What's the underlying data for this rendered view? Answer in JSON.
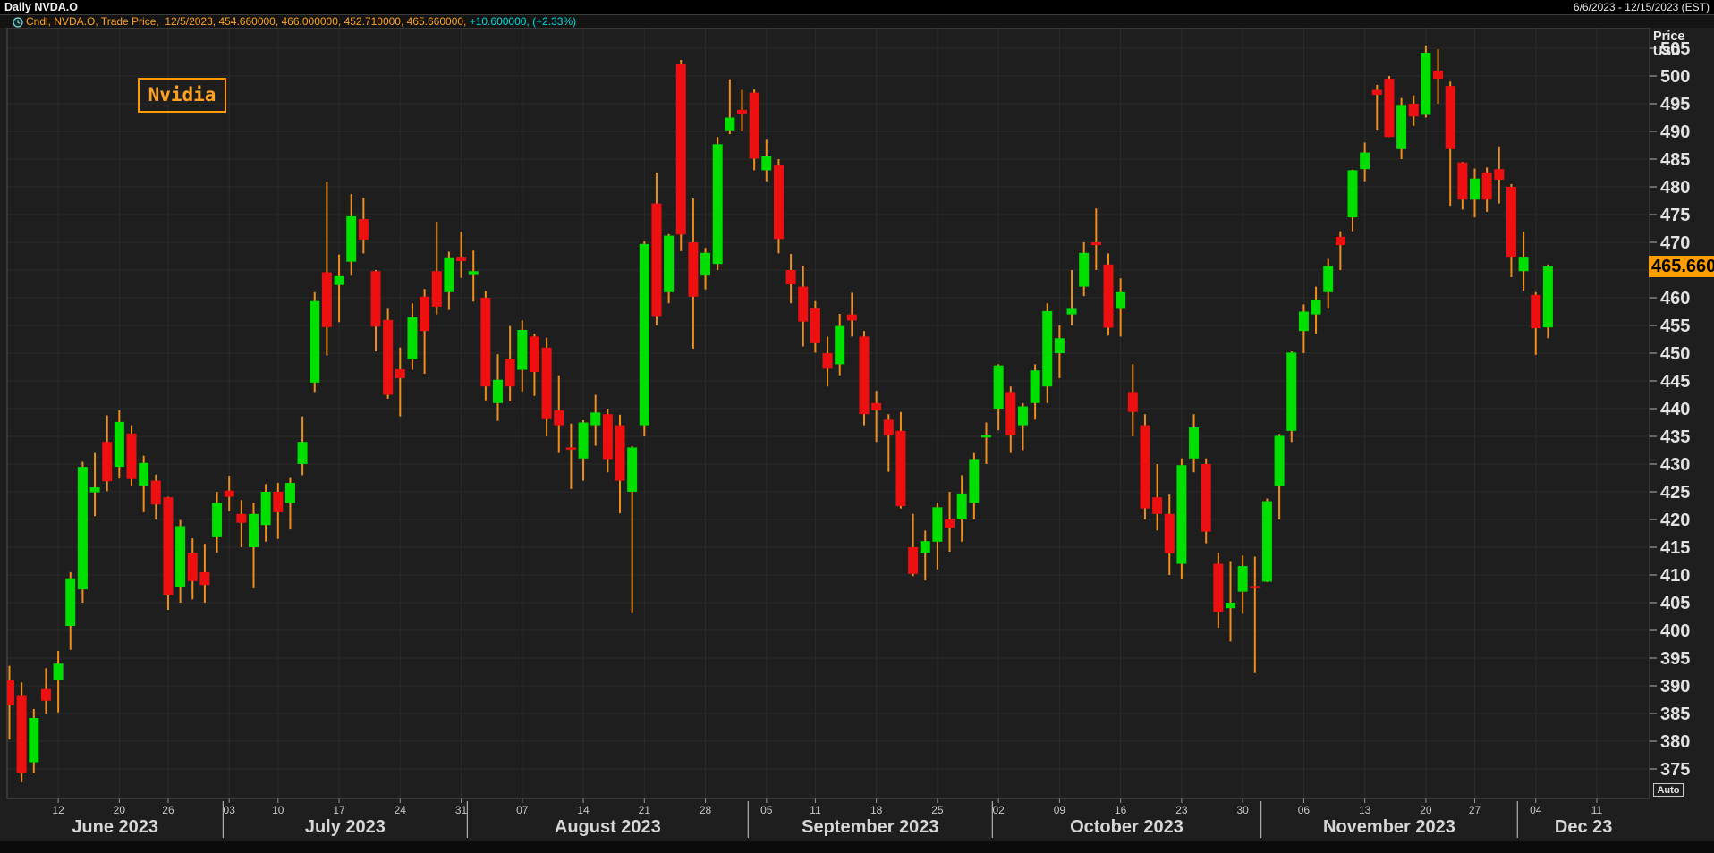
{
  "title_bar": {
    "title": "Daily NVDA.O",
    "date_range": "6/6/2023 - 12/15/2023 (EST)"
  },
  "legend": {
    "icon": "clock-icon",
    "main_text": "Cndl, NVDA.O, Trade Price,  12/5/2023, 454.660000, 466.000000, 452.710000, 465.660000, ",
    "change_text": "+10.600000, (+2.33%)"
  },
  "annotation": {
    "label": "Nvidia"
  },
  "price_axis": {
    "title_line1": "Price",
    "title_line2": "USD",
    "ticks": [
      505,
      500,
      495,
      490,
      485,
      480,
      475,
      470,
      465,
      460,
      455,
      450,
      445,
      440,
      435,
      430,
      425,
      420,
      415,
      410,
      405,
      400,
      395,
      390,
      385,
      380,
      375
    ],
    "hidden_tick": 465,
    "last_price_label": "465.660",
    "last_price_value": 465.66,
    "auto_button": "Auto"
  },
  "date_axis": {
    "week_ticks": [
      {
        "label": "12",
        "index": 4
      },
      {
        "label": "20",
        "index": 9
      },
      {
        "label": "26",
        "index": 13
      },
      {
        "label": "03",
        "index": 18
      },
      {
        "label": "10",
        "index": 22
      },
      {
        "label": "17",
        "index": 27
      },
      {
        "label": "24",
        "index": 32
      },
      {
        "label": "31",
        "index": 37
      },
      {
        "label": "07",
        "index": 42
      },
      {
        "label": "14",
        "index": 47
      },
      {
        "label": "21",
        "index": 52
      },
      {
        "label": "28",
        "index": 57
      },
      {
        "label": "05",
        "index": 62
      },
      {
        "label": "11",
        "index": 66
      },
      {
        "label": "18",
        "index": 71
      },
      {
        "label": "25",
        "index": 76
      },
      {
        "label": "02",
        "index": 81
      },
      {
        "label": "09",
        "index": 86
      },
      {
        "label": "16",
        "index": 91
      },
      {
        "label": "23",
        "index": 96
      },
      {
        "label": "30",
        "index": 101
      },
      {
        "label": "06",
        "index": 106
      },
      {
        "label": "13",
        "index": 111
      },
      {
        "label": "20",
        "index": 116
      },
      {
        "label": "27",
        "index": 120
      },
      {
        "label": "04",
        "index": 125
      },
      {
        "label": "11",
        "index": 130
      }
    ],
    "months": [
      {
        "label": "June 2023",
        "start_index": 0
      },
      {
        "label": "July 2023",
        "start_index": 18
      },
      {
        "label": "August 2023",
        "start_index": 38
      },
      {
        "label": "September 2023",
        "start_index": 61
      },
      {
        "label": "October 2023",
        "start_index": 81
      },
      {
        "label": "November 2023",
        "start_index": 103
      },
      {
        "label": "Dec 23",
        "start_index": 124
      }
    ]
  },
  "colors": {
    "up": "#00e000",
    "down": "#ee1010",
    "wick": "#ef8e1a",
    "badge": "#ff9d00",
    "legend_orange": "#ffa21f",
    "legend_cyan": "#00dcdc",
    "grid": "#2b2b2b",
    "plot_border": "#4f4f4f",
    "axis_text": "#e2e2e2",
    "day_text": "#c8c8c8",
    "month_text": "#d6d6d6",
    "separator": "#b0b0b0"
  },
  "chart_data": {
    "type": "candlestick",
    "symbol": "NVDA.O",
    "interval": "Daily",
    "title": "Nvidia",
    "ylabel": "Price USD",
    "x_range": [
      "6/6/2023",
      "12/15/2023"
    ],
    "ylim": [
      370,
      509
    ],
    "grid": true,
    "series": [
      {
        "date": "6/6",
        "o": 391.0,
        "h": 393.6,
        "l": 380.3,
        "c": 386.5
      },
      {
        "date": "6/7",
        "o": 388.3,
        "h": 390.6,
        "l": 372.6,
        "c": 374.2
      },
      {
        "date": "6/8",
        "o": 376.2,
        "h": 385.8,
        "l": 374.2,
        "c": 384.2
      },
      {
        "date": "6/9",
        "o": 389.4,
        "h": 393.2,
        "l": 385.0,
        "c": 387.3
      },
      {
        "date": "6/12",
        "o": 391.1,
        "h": 396.3,
        "l": 385.2,
        "c": 394.0
      },
      {
        "date": "6/13",
        "o": 400.8,
        "h": 410.5,
        "l": 396.5,
        "c": 409.4
      },
      {
        "date": "6/14",
        "o": 407.4,
        "h": 430.4,
        "l": 405.0,
        "c": 429.5
      },
      {
        "date": "6/15",
        "o": 424.9,
        "h": 432.0,
        "l": 420.6,
        "c": 425.8
      },
      {
        "date": "6/16",
        "o": 434.0,
        "h": 438.8,
        "l": 425.1,
        "c": 426.9
      },
      {
        "date": "6/20",
        "o": 429.5,
        "h": 439.7,
        "l": 427.4,
        "c": 437.6
      },
      {
        "date": "6/21",
        "o": 435.5,
        "h": 437.0,
        "l": 426.0,
        "c": 427.3
      },
      {
        "date": "6/22",
        "o": 426.1,
        "h": 431.5,
        "l": 421.3,
        "c": 430.2
      },
      {
        "date": "6/23",
        "o": 427.0,
        "h": 428.1,
        "l": 420.0,
        "c": 422.7
      },
      {
        "date": "6/26",
        "o": 424.0,
        "h": 424.1,
        "l": 403.7,
        "c": 406.3
      },
      {
        "date": "6/27",
        "o": 407.9,
        "h": 419.9,
        "l": 405.0,
        "c": 418.8
      },
      {
        "date": "6/28",
        "o": 414.0,
        "h": 416.6,
        "l": 405.6,
        "c": 408.9
      },
      {
        "date": "6/29",
        "o": 410.5,
        "h": 415.6,
        "l": 405.0,
        "c": 408.2
      },
      {
        "date": "6/30",
        "o": 416.8,
        "h": 425.0,
        "l": 414.0,
        "c": 423.0
      },
      {
        "date": "7/3",
        "o": 425.2,
        "h": 427.9,
        "l": 421.5,
        "c": 424.1
      },
      {
        "date": "7/5",
        "o": 421.0,
        "h": 423.5,
        "l": 415.0,
        "c": 419.4
      },
      {
        "date": "7/6",
        "o": 415.0,
        "h": 423.0,
        "l": 407.6,
        "c": 421.0
      },
      {
        "date": "7/7",
        "o": 419.0,
        "h": 426.4,
        "l": 416.0,
        "c": 425.0
      },
      {
        "date": "7/10",
        "o": 425.0,
        "h": 426.6,
        "l": 416.5,
        "c": 421.3
      },
      {
        "date": "7/11",
        "o": 423.0,
        "h": 427.5,
        "l": 418.2,
        "c": 426.6
      },
      {
        "date": "7/12",
        "o": 430.0,
        "h": 438.6,
        "l": 428.0,
        "c": 434.0
      },
      {
        "date": "7/13",
        "o": 444.7,
        "h": 461.0,
        "l": 443.0,
        "c": 459.4
      },
      {
        "date": "7/14",
        "o": 464.6,
        "h": 480.9,
        "l": 449.6,
        "c": 454.7
      },
      {
        "date": "7/17",
        "o": 462.3,
        "h": 467.8,
        "l": 455.6,
        "c": 463.9
      },
      {
        "date": "7/18",
        "o": 466.5,
        "h": 478.7,
        "l": 464.0,
        "c": 474.7
      },
      {
        "date": "7/19",
        "o": 474.2,
        "h": 478.0,
        "l": 468.0,
        "c": 470.5
      },
      {
        "date": "7/20",
        "o": 464.8,
        "h": 465.0,
        "l": 450.3,
        "c": 454.8
      },
      {
        "date": "7/21",
        "o": 456.0,
        "h": 458.0,
        "l": 441.8,
        "c": 442.5
      },
      {
        "date": "7/24",
        "o": 447.1,
        "h": 451.0,
        "l": 438.6,
        "c": 445.5
      },
      {
        "date": "7/25",
        "o": 448.9,
        "h": 459.0,
        "l": 447.0,
        "c": 456.5
      },
      {
        "date": "7/26",
        "o": 460.2,
        "h": 461.6,
        "l": 446.3,
        "c": 454.0
      },
      {
        "date": "7/27",
        "o": 464.8,
        "h": 473.7,
        "l": 457.0,
        "c": 458.4
      },
      {
        "date": "7/28",
        "o": 461.0,
        "h": 468.3,
        "l": 457.8,
        "c": 467.3
      },
      {
        "date": "7/31",
        "o": 467.4,
        "h": 471.9,
        "l": 463.6,
        "c": 466.6
      },
      {
        "date": "8/1",
        "o": 464.1,
        "h": 468.5,
        "l": 459.3,
        "c": 464.8
      },
      {
        "date": "8/2",
        "o": 460.0,
        "h": 461.2,
        "l": 441.5,
        "c": 444.0
      },
      {
        "date": "8/3",
        "o": 441.0,
        "h": 449.8,
        "l": 437.8,
        "c": 445.2
      },
      {
        "date": "8/4",
        "o": 449.0,
        "h": 454.9,
        "l": 441.3,
        "c": 444.0
      },
      {
        "date": "8/7",
        "o": 447.0,
        "h": 455.9,
        "l": 443.1,
        "c": 454.2
      },
      {
        "date": "8/8",
        "o": 453.0,
        "h": 453.5,
        "l": 442.3,
        "c": 446.6
      },
      {
        "date": "8/9",
        "o": 451.0,
        "h": 452.8,
        "l": 435.0,
        "c": 438.1
      },
      {
        "date": "8/10",
        "o": 439.7,
        "h": 446.0,
        "l": 432.0,
        "c": 437.0
      },
      {
        "date": "8/11",
        "o": 433.0,
        "h": 437.3,
        "l": 425.5,
        "c": 432.6
      },
      {
        "date": "8/14",
        "o": 431.0,
        "h": 437.9,
        "l": 427.0,
        "c": 437.5
      },
      {
        "date": "8/15",
        "o": 437.0,
        "h": 442.5,
        "l": 433.3,
        "c": 439.3
      },
      {
        "date": "8/16",
        "o": 439.0,
        "h": 440.0,
        "l": 428.5,
        "c": 430.9
      },
      {
        "date": "8/17",
        "o": 437.0,
        "h": 438.9,
        "l": 421.1,
        "c": 427.0
      },
      {
        "date": "8/18",
        "o": 425.0,
        "h": 433.2,
        "l": 403.1,
        "c": 433.0
      },
      {
        "date": "8/21",
        "o": 437.0,
        "h": 470.2,
        "l": 435.0,
        "c": 469.7
      },
      {
        "date": "8/22",
        "o": 477.0,
        "h": 482.6,
        "l": 455.0,
        "c": 456.7
      },
      {
        "date": "8/23",
        "o": 461.0,
        "h": 471.5,
        "l": 459.0,
        "c": 471.2
      },
      {
        "date": "8/24",
        "o": 502.1,
        "h": 502.9,
        "l": 468.4,
        "c": 471.4
      },
      {
        "date": "8/25",
        "o": 470.0,
        "h": 477.9,
        "l": 450.8,
        "c": 460.2
      },
      {
        "date": "8/28",
        "o": 464.0,
        "h": 469.0,
        "l": 461.5,
        "c": 468.1
      },
      {
        "date": "8/29",
        "o": 466.1,
        "h": 489.0,
        "l": 465.0,
        "c": 487.7
      },
      {
        "date": "8/30",
        "o": 490.2,
        "h": 499.4,
        "l": 489.5,
        "c": 492.5
      },
      {
        "date": "8/31",
        "o": 493.9,
        "h": 497.5,
        "l": 490.0,
        "c": 493.2
      },
      {
        "date": "9/1",
        "o": 497.0,
        "h": 497.6,
        "l": 483.0,
        "c": 485.1
      },
      {
        "date": "9/5",
        "o": 483.0,
        "h": 488.5,
        "l": 481.0,
        "c": 485.5
      },
      {
        "date": "9/6",
        "o": 484.0,
        "h": 485.0,
        "l": 468.0,
        "c": 470.6
      },
      {
        "date": "9/7",
        "o": 465.0,
        "h": 467.9,
        "l": 459.0,
        "c": 462.4
      },
      {
        "date": "9/8",
        "o": 462.0,
        "h": 465.8,
        "l": 451.2,
        "c": 455.7
      },
      {
        "date": "9/11",
        "o": 458.1,
        "h": 459.4,
        "l": 450.1,
        "c": 451.8
      },
      {
        "date": "9/12",
        "o": 450.0,
        "h": 453.0,
        "l": 444.0,
        "c": 447.2
      },
      {
        "date": "9/13",
        "o": 448.0,
        "h": 457.1,
        "l": 446.0,
        "c": 454.9
      },
      {
        "date": "9/14",
        "o": 457.0,
        "h": 460.9,
        "l": 453.0,
        "c": 455.9
      },
      {
        "date": "9/15",
        "o": 453.0,
        "h": 454.0,
        "l": 437.0,
        "c": 439.0
      },
      {
        "date": "9/18",
        "o": 441.0,
        "h": 443.2,
        "l": 434.0,
        "c": 439.7
      },
      {
        "date": "9/19",
        "o": 438.0,
        "h": 439.0,
        "l": 428.6,
        "c": 435.2
      },
      {
        "date": "9/20",
        "o": 436.0,
        "h": 439.4,
        "l": 422.0,
        "c": 422.4
      },
      {
        "date": "9/21",
        "o": 415.0,
        "h": 421.0,
        "l": 409.8,
        "c": 410.2
      },
      {
        "date": "9/22",
        "o": 414.0,
        "h": 418.0,
        "l": 409.0,
        "c": 416.1
      },
      {
        "date": "9/25",
        "o": 416.0,
        "h": 423.0,
        "l": 411.0,
        "c": 422.2
      },
      {
        "date": "9/26",
        "o": 420.0,
        "h": 425.0,
        "l": 414.2,
        "c": 418.5
      },
      {
        "date": "9/27",
        "o": 420.0,
        "h": 428.0,
        "l": 416.0,
        "c": 424.7
      },
      {
        "date": "9/28",
        "o": 423.0,
        "h": 432.0,
        "l": 420.0,
        "c": 430.9
      },
      {
        "date": "9/29",
        "o": 435.0,
        "h": 437.5,
        "l": 430.0,
        "c": 435.2
      },
      {
        "date": "10/2",
        "o": 440.0,
        "h": 448.0,
        "l": 436.1,
        "c": 447.8
      },
      {
        "date": "10/3",
        "o": 443.0,
        "h": 444.0,
        "l": 432.0,
        "c": 435.2
      },
      {
        "date": "10/4",
        "o": 437.0,
        "h": 441.0,
        "l": 432.5,
        "c": 440.4
      },
      {
        "date": "10/5",
        "o": 441.0,
        "h": 448.0,
        "l": 438.0,
        "c": 446.9
      },
      {
        "date": "10/6",
        "o": 444.0,
        "h": 459.0,
        "l": 441.0,
        "c": 457.6
      },
      {
        "date": "10/9",
        "o": 450.0,
        "h": 455.0,
        "l": 445.5,
        "c": 452.7
      },
      {
        "date": "10/10",
        "o": 457.0,
        "h": 465.0,
        "l": 455.0,
        "c": 458.0
      },
      {
        "date": "10/11",
        "o": 462.0,
        "h": 470.0,
        "l": 460.3,
        "c": 468.1
      },
      {
        "date": "10/12",
        "o": 470.0,
        "h": 476.1,
        "l": 465.0,
        "c": 469.5
      },
      {
        "date": "10/13",
        "o": 466.0,
        "h": 468.0,
        "l": 453.2,
        "c": 454.6
      },
      {
        "date": "10/16",
        "o": 458.0,
        "h": 463.5,
        "l": 453.0,
        "c": 461.0
      },
      {
        "date": "10/17",
        "o": 443.0,
        "h": 448.0,
        "l": 435.0,
        "c": 439.4
      },
      {
        "date": "10/18",
        "o": 437.0,
        "h": 439.0,
        "l": 420.0,
        "c": 422.0
      },
      {
        "date": "10/19",
        "o": 424.0,
        "h": 430.0,
        "l": 418.0,
        "c": 421.0
      },
      {
        "date": "10/20",
        "o": 421.0,
        "h": 424.5,
        "l": 410.0,
        "c": 413.9
      },
      {
        "date": "10/23",
        "o": 412.0,
        "h": 431.0,
        "l": 409.2,
        "c": 429.8
      },
      {
        "date": "10/24",
        "o": 431.0,
        "h": 439.0,
        "l": 428.5,
        "c": 436.6
      },
      {
        "date": "10/25",
        "o": 430.0,
        "h": 431.0,
        "l": 415.7,
        "c": 417.8
      },
      {
        "date": "10/26",
        "o": 412.0,
        "h": 414.0,
        "l": 400.5,
        "c": 403.3
      },
      {
        "date": "10/27",
        "o": 404.0,
        "h": 412.5,
        "l": 398.0,
        "c": 405.0
      },
      {
        "date": "10/30",
        "o": 407.0,
        "h": 413.5,
        "l": 403.0,
        "c": 411.6
      },
      {
        "date": "10/31",
        "o": 408.0,
        "h": 413.3,
        "l": 392.3,
        "c": 407.8
      },
      {
        "date": "11/1",
        "o": 408.8,
        "h": 423.8,
        "l": 408.7,
        "c": 423.3
      },
      {
        "date": "11/2",
        "o": 426.0,
        "h": 435.4,
        "l": 420.0,
        "c": 435.1
      },
      {
        "date": "11/3",
        "o": 436.0,
        "h": 450.3,
        "l": 434.0,
        "c": 450.1
      },
      {
        "date": "11/6",
        "o": 454.0,
        "h": 458.8,
        "l": 450.0,
        "c": 457.5
      },
      {
        "date": "11/7",
        "o": 457.0,
        "h": 462.0,
        "l": 453.5,
        "c": 459.6
      },
      {
        "date": "11/8",
        "o": 461.0,
        "h": 467.0,
        "l": 458.0,
        "c": 465.7
      },
      {
        "date": "11/9",
        "o": 471.0,
        "h": 472.0,
        "l": 465.0,
        "c": 469.5
      },
      {
        "date": "11/10",
        "o": 474.5,
        "h": 483.1,
        "l": 472.0,
        "c": 483.0
      },
      {
        "date": "11/13",
        "o": 483.2,
        "h": 488.0,
        "l": 481.0,
        "c": 486.2
      },
      {
        "date": "11/14",
        "o": 497.5,
        "h": 498.4,
        "l": 490.3,
        "c": 496.6
      },
      {
        "date": "11/15",
        "o": 499.5,
        "h": 500.0,
        "l": 489.0,
        "c": 489.0
      },
      {
        "date": "11/16",
        "o": 486.8,
        "h": 496.0,
        "l": 485.0,
        "c": 494.8
      },
      {
        "date": "11/17",
        "o": 495.0,
        "h": 496.5,
        "l": 491.0,
        "c": 492.7
      },
      {
        "date": "11/20",
        "o": 493.0,
        "h": 505.5,
        "l": 492.5,
        "c": 504.2
      },
      {
        "date": "11/21",
        "o": 501.0,
        "h": 504.8,
        "l": 495.0,
        "c": 499.5
      },
      {
        "date": "11/22",
        "o": 498.2,
        "h": 499.0,
        "l": 476.6,
        "c": 486.8
      },
      {
        "date": "11/24",
        "o": 484.4,
        "h": 484.5,
        "l": 475.9,
        "c": 477.7
      },
      {
        "date": "11/27",
        "o": 477.7,
        "h": 483.3,
        "l": 474.5,
        "c": 481.5
      },
      {
        "date": "11/28",
        "o": 482.6,
        "h": 483.5,
        "l": 475.5,
        "c": 477.7
      },
      {
        "date": "11/29",
        "o": 483.2,
        "h": 487.3,
        "l": 477.0,
        "c": 481.3
      },
      {
        "date": "11/30",
        "o": 480.0,
        "h": 480.5,
        "l": 463.7,
        "c": 467.4
      },
      {
        "date": "12/1",
        "o": 464.8,
        "h": 471.9,
        "l": 461.3,
        "c": 467.4
      },
      {
        "date": "12/4",
        "o": 460.5,
        "h": 461.0,
        "l": 449.7,
        "c": 454.5
      },
      {
        "date": "12/5",
        "o": 454.66,
        "h": 466.0,
        "l": 452.71,
        "c": 465.66
      }
    ]
  }
}
